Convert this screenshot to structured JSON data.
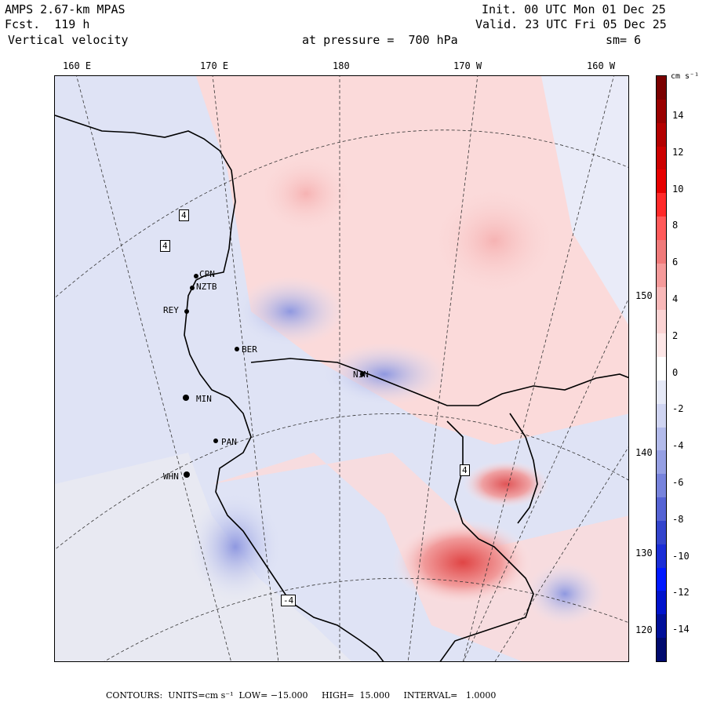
{
  "header": {
    "model": "AMPS 2.67-km MPAS",
    "forecast": "Fcst.  119 h",
    "field": "Vertical velocity",
    "pressure_level": "at pressure =  700 hPa",
    "init": "Init. 00 UTC Mon 01 Dec 25",
    "valid": "Valid. 23 UTC Fri 05 Dec 25",
    "smoothing": "sm= 6"
  },
  "longitude_labels_top": [
    "160 E",
    "170 E",
    "180",
    "170 W",
    "160 W"
  ],
  "longitude_labels_right": [
    "150 W",
    "140 W",
    "130 W",
    "120 W"
  ],
  "stations": [
    {
      "label": "CPN"
    },
    {
      "label": "NZTB"
    },
    {
      "label": "REY"
    },
    {
      "label": "BER"
    },
    {
      "label": "PAN"
    },
    {
      "label": "WHN"
    },
    {
      "label": "MIN"
    },
    {
      "label": "NIN"
    }
  ],
  "contour_labels": [
    "4",
    "4",
    "-4",
    "4"
  ],
  "colorbar": {
    "units": "cm s⁻¹",
    "tick_labels": [
      "14",
      "12",
      "10",
      "8",
      "6",
      "4",
      "2",
      "0",
      "-2",
      "-4",
      "-6",
      "-8",
      "-10",
      "-12",
      "-14"
    ],
    "colors": [
      "#7a0000",
      "#990000",
      "#b30000",
      "#cc0000",
      "#e60000",
      "#ff2a2a",
      "#ff5a5a",
      "#f07a7a",
      "#f59a9a",
      "#f8b8b8",
      "#fbd3d3",
      "#fde6e6",
      "#ffffff",
      "#e6e9f7",
      "#d0d5f2",
      "#b3bbeb",
      "#959fe3",
      "#7783dc",
      "#5563d4",
      "#3344cc",
      "#1a2dd6",
      "#0019ff",
      "#0013cc",
      "#000f99",
      "#000a6e"
    ]
  },
  "footer": {
    "contours": "CONTOURS:  UNITS=cm s⁻¹  LOW= −15.000     HIGH=  15.000     INTERVAL=   1.0000"
  }
}
